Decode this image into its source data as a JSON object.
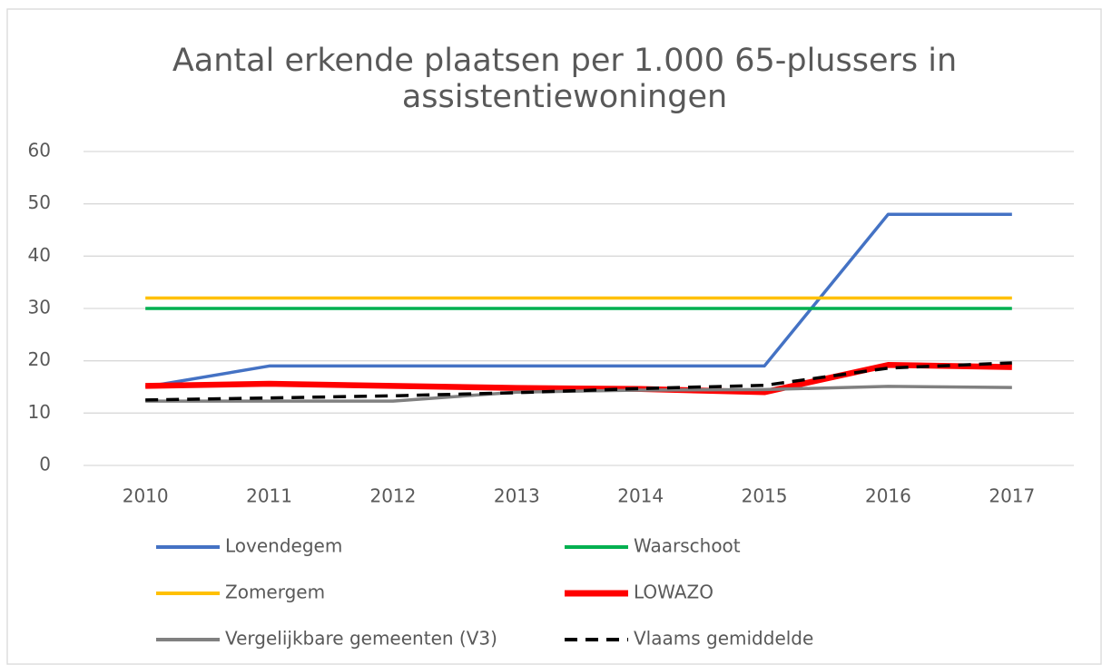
{
  "chart_data": {
    "type": "line",
    "title": [
      "Aantal erkende plaatsen per 1.000 65-plussers in",
      "assistentiewoningen"
    ],
    "categories": [
      "2010",
      "2011",
      "2012",
      "2013",
      "2014",
      "2015",
      "2016",
      "2017"
    ],
    "series": [
      {
        "name": "Lovendegem",
        "color": "#4472c4",
        "values": [
          15,
          19,
          19,
          19,
          19,
          19,
          48,
          48
        ]
      },
      {
        "name": "Waarschoot",
        "color": "#00b050",
        "values": [
          30,
          30,
          30,
          30,
          30,
          30,
          30,
          30
        ]
      },
      {
        "name": "Zomergem",
        "color": "#ffc000",
        "values": [
          32,
          32,
          32,
          32,
          32,
          32,
          32,
          32
        ]
      },
      {
        "name": "LOWAZO",
        "color": "#ff0000",
        "values": [
          15.2,
          15.6,
          15.2,
          14.8,
          14.6,
          14.0,
          19.2,
          18.8
        ]
      },
      {
        "name": "Vergelijkbare gemeenten (V3)",
        "color": "#808080",
        "values": [
          12.3,
          12.3,
          12.3,
          14.0,
          14.4,
          14.5,
          15.1,
          14.9
        ]
      },
      {
        "name": "Vlaams gemiddelde",
        "color": "#000000",
        "dashed": true,
        "values": [
          12.5,
          12.9,
          13.3,
          13.9,
          14.7,
          15.3,
          18.6,
          19.6
        ]
      }
    ],
    "ylim": [
      0,
      60
    ],
    "yticks": [
      0,
      10,
      20,
      30,
      40,
      50,
      60
    ],
    "grid": true,
    "legend": "bottom"
  }
}
